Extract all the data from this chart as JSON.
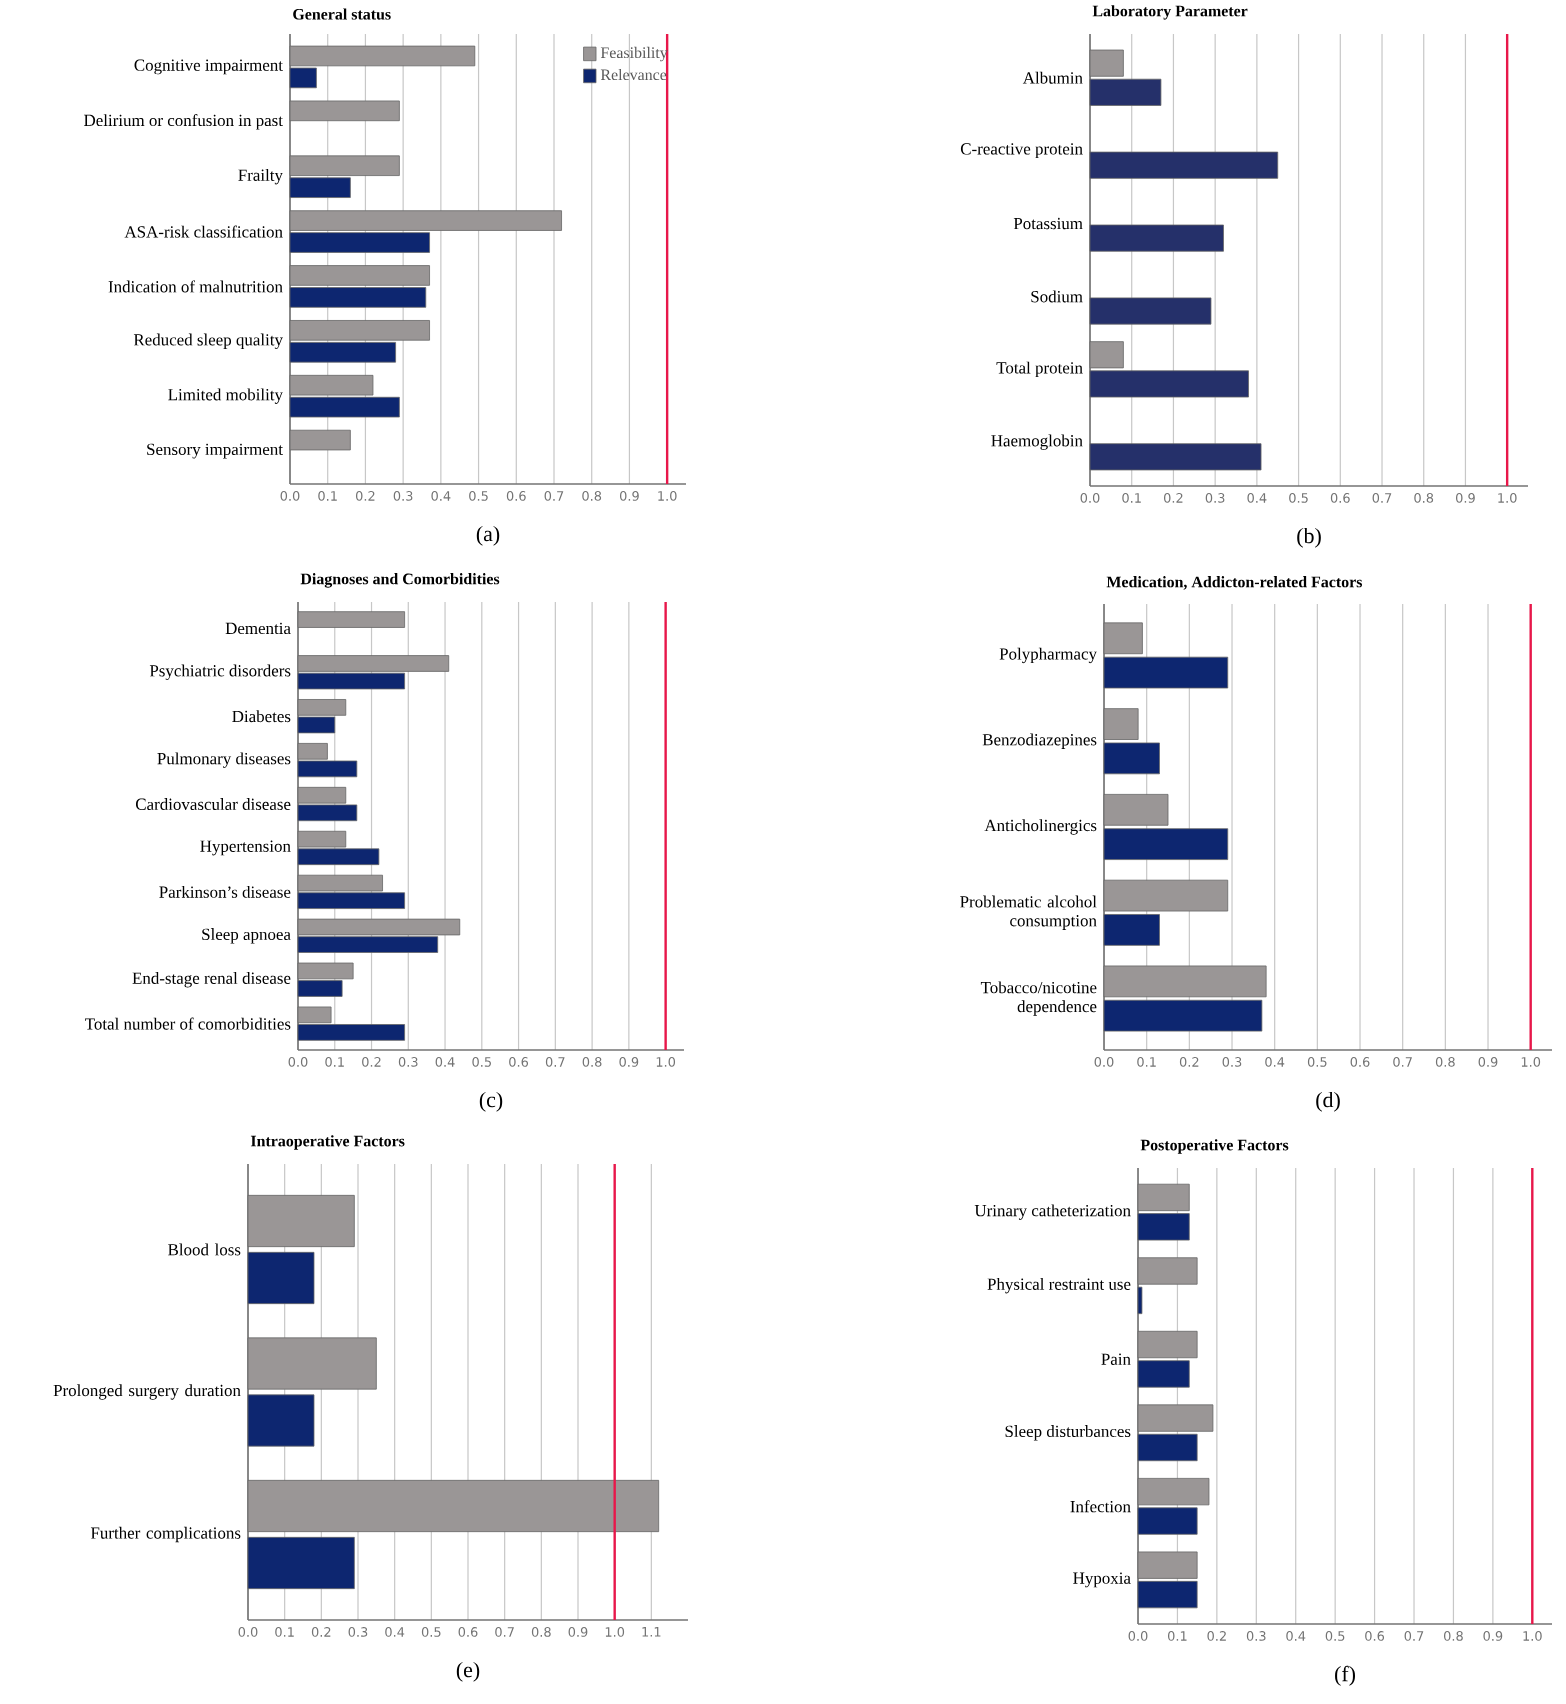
{
  "chart_data": [
    {
      "type": "bar",
      "orientation": "horizontal",
      "title": "General status",
      "categories": [
        "Cognitive impairment",
        "Delirium or confusion in past",
        "Frailty",
        "ASA-risk classification",
        "Indication of malnutrition",
        "Reduced sleep quality",
        "Limited mobility",
        "Sensory impairment"
      ],
      "series": [
        {
          "name": "Feasibility",
          "color": "#9a9696",
          "values": [
            0.49,
            0.29,
            0.29,
            0.72,
            0.37,
            0.37,
            0.22,
            0.16
          ]
        },
        {
          "name": "Relevance",
          "color": "#0d2670",
          "values": [
            0.07,
            null,
            0.16,
            0.37,
            0.36,
            0.28,
            0.29,
            null
          ]
        }
      ],
      "xlim": [
        0,
        1.05
      ],
      "xticks": [
        {
          "value": 0,
          "label": "0.0"
        },
        {
          "value": 0.1,
          "label": "0.1"
        },
        {
          "value": 0.2,
          "label": "0.2"
        },
        {
          "value": 0.3,
          "label": "0.3"
        },
        {
          "value": 0.4,
          "label": "0.4"
        },
        {
          "value": 0.5,
          "label": "0.5"
        },
        {
          "value": 0.6,
          "label": "0.6"
        },
        {
          "value": 0.7,
          "label": "0.7"
        },
        {
          "value": 0.8,
          "label": "0.8"
        },
        {
          "value": 0.9,
          "label": "0.9"
        },
        {
          "value": 1,
          "label": "1.0"
        }
      ],
      "grid": "x",
      "legend": "top right",
      "ref_lines": [
        {
          "axis": "x",
          "value": 1,
          "color": "#e8174a"
        }
      ],
      "annotations": [
        "(a)"
      ]
    },
    {
      "type": "bar",
      "orientation": "horizontal",
      "title": "Laboratory Parameter",
      "categories": [
        "Albumin",
        "C-reactive protein",
        "Potassium",
        "Sodium",
        "Total protein",
        "Haemoglobin"
      ],
      "series": [
        {
          "color": "#9a9696",
          "values": [
            0.08,
            null,
            null,
            null,
            0.08,
            null
          ]
        },
        {
          "color": "#25306a",
          "values": [
            0.17,
            0.45,
            0.32,
            0.29,
            0.38,
            0.41
          ]
        }
      ],
      "xlim": [
        0,
        1.05
      ],
      "xticks": [
        {
          "value": 0,
          "label": "0.0"
        },
        {
          "value": 0.1,
          "label": "0.1"
        },
        {
          "value": 0.2,
          "label": "0.2"
        },
        {
          "value": 0.3,
          "label": "0.3"
        },
        {
          "value": 0.4,
          "label": "0.4"
        },
        {
          "value": 0.5,
          "label": "0.5"
        },
        {
          "value": 0.6,
          "label": "0.6"
        },
        {
          "value": 0.7,
          "label": "0.7"
        },
        {
          "value": 0.8,
          "label": "0.8"
        },
        {
          "value": 0.9,
          "label": "0.9"
        },
        {
          "value": 1,
          "label": "1.0"
        }
      ],
      "grid": "x",
      "ref_lines": [
        {
          "axis": "x",
          "value": 1,
          "color": "#e8174a"
        }
      ],
      "annotations": [
        "(b)"
      ]
    },
    {
      "type": "bar",
      "orientation": "horizontal",
      "title": "Diagnoses and Comorbidities",
      "categories": [
        "Dementia",
        "Psychiatric disorders",
        "Diabetes",
        "Pulmonary diseases",
        "Cardiovascular disease",
        "Hypertension",
        "Parkinson’s disease",
        "Sleep apnoea",
        "End-stage renal disease",
        "Total number of comorbidities"
      ],
      "series": [
        {
          "color": "#9a9696",
          "values": [
            0.29,
            0.41,
            0.13,
            0.08,
            0.13,
            0.13,
            0.23,
            0.44,
            0.15,
            0.09
          ]
        },
        {
          "color": "#0d2670",
          "values": [
            null,
            0.29,
            0.1,
            0.16,
            0.16,
            0.22,
            0.29,
            0.38,
            0.12,
            0.29
          ]
        }
      ],
      "xlim": [
        0,
        1.05
      ],
      "xticks": [
        {
          "value": 0,
          "label": "0.0"
        },
        {
          "value": 0.1,
          "label": "0.1"
        },
        {
          "value": 0.2,
          "label": "0.2"
        },
        {
          "value": 0.3,
          "label": "0.3"
        },
        {
          "value": 0.4,
          "label": "0.4"
        },
        {
          "value": 0.5,
          "label": "0.5"
        },
        {
          "value": 0.6,
          "label": "0.6"
        },
        {
          "value": 0.7,
          "label": "0.7"
        },
        {
          "value": 0.8,
          "label": "0.8"
        },
        {
          "value": 0.9,
          "label": "0.9"
        },
        {
          "value": 1,
          "label": "1.0"
        }
      ],
      "grid": "x",
      "ref_lines": [
        {
          "axis": "x",
          "value": 1,
          "color": "#e8174a"
        }
      ],
      "annotations": [
        "(c)"
      ]
    },
    {
      "type": "bar",
      "orientation": "horizontal",
      "title": "Medication, Addicton-related Factors",
      "categories": [
        "Polypharmacy",
        "Benzodiazepines",
        "Anticholinergics",
        "Problematic alcohol consumption",
        "Tobacco/nicotine dependence"
      ],
      "series": [
        {
          "color": "#9a9696",
          "values": [
            0.09,
            0.08,
            0.15,
            0.29,
            0.38
          ]
        },
        {
          "color": "#0d2670",
          "values": [
            0.29,
            0.13,
            0.29,
            0.13,
            0.37
          ]
        }
      ],
      "xlim": [
        0,
        1.05
      ],
      "xticks": [
        {
          "value": 0,
          "label": "0.0"
        },
        {
          "value": 0.1,
          "label": "0.1"
        },
        {
          "value": 0.2,
          "label": "0.2"
        },
        {
          "value": 0.3,
          "label": "0.3"
        },
        {
          "value": 0.4,
          "label": "0.4"
        },
        {
          "value": 0.5,
          "label": "0.5"
        },
        {
          "value": 0.6,
          "label": "0.6"
        },
        {
          "value": 0.7,
          "label": "0.7"
        },
        {
          "value": 0.8,
          "label": "0.8"
        },
        {
          "value": 0.9,
          "label": "0.9"
        },
        {
          "value": 1,
          "label": "1.0"
        }
      ],
      "grid": "x",
      "ref_lines": [
        {
          "axis": "x",
          "value": 1,
          "color": "#e8174a"
        }
      ],
      "annotations": [
        "(d)"
      ]
    },
    {
      "type": "bar",
      "orientation": "horizontal",
      "title": "Intraoperative Factors",
      "categories": [
        "Blood loss",
        "Prolonged surgery duration",
        "Further complications"
      ],
      "series": [
        {
          "color": "#9a9696",
          "values": [
            0.29,
            0.35,
            1.12
          ]
        },
        {
          "color": "#0d2670",
          "values": [
            0.18,
            0.18,
            0.29
          ]
        }
      ],
      "xlim": [
        0,
        1.2
      ],
      "xticks": [
        {
          "value": 0,
          "label": "0.0"
        },
        {
          "value": 0.1,
          "label": "0.1"
        },
        {
          "value": 0.2,
          "label": "0.2"
        },
        {
          "value": 0.3,
          "label": "0.3"
        },
        {
          "value": 0.4,
          "label": "0.4"
        },
        {
          "value": 0.5,
          "label": "0.5"
        },
        {
          "value": 0.6,
          "label": "0.6"
        },
        {
          "value": 0.7,
          "label": "0.7"
        },
        {
          "value": 0.8,
          "label": "0.8"
        },
        {
          "value": 0.9,
          "label": "0.9"
        },
        {
          "value": 1,
          "label": "1.0"
        },
        {
          "value": 1.1,
          "label": "1.1"
        }
      ],
      "grid": "x",
      "ref_lines": [
        {
          "axis": "x",
          "value": 1,
          "color": "#e8174a"
        }
      ],
      "annotations": [
        "(e)"
      ]
    },
    {
      "type": "bar",
      "orientation": "horizontal",
      "title": "Postoperative Factors",
      "categories": [
        "Urinary catheterization",
        "Physical restraint use",
        "Pain",
        "Sleep disturbances",
        "Infection",
        "Hypoxia"
      ],
      "series": [
        {
          "color": "#9a9696",
          "values": [
            0.13,
            0.15,
            0.15,
            0.19,
            0.18,
            0.15
          ]
        },
        {
          "color": "#0d2670",
          "values": [
            0.13,
            0.01,
            0.13,
            0.15,
            0.15,
            0.15
          ]
        }
      ],
      "xlim": [
        0,
        1.05
      ],
      "xticks": [
        {
          "value": 0,
          "label": "0.0"
        },
        {
          "value": 0.1,
          "label": "0.1"
        },
        {
          "value": 0.2,
          "label": "0.2"
        },
        {
          "value": 0.3,
          "label": "0.3"
        },
        {
          "value": 0.4,
          "label": "0.4"
        },
        {
          "value": 0.5,
          "label": "0.5"
        },
        {
          "value": 0.6,
          "label": "0.6"
        },
        {
          "value": 0.7,
          "label": "0.7"
        },
        {
          "value": 0.8,
          "label": "0.8"
        },
        {
          "value": 0.9,
          "label": "0.9"
        },
        {
          "value": 1,
          "label": "1.0"
        }
      ],
      "grid": "x",
      "ref_lines": [
        {
          "axis": "x",
          "value": 1,
          "color": "#e8174a"
        }
      ],
      "annotations": [
        "(f)"
      ]
    }
  ]
}
